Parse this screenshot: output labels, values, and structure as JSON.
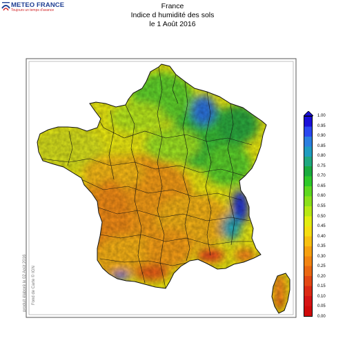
{
  "logo": {
    "name": "METEO FRANCE",
    "tagline": "Toujours un temps d'avance"
  },
  "title": {
    "line1": "France",
    "line2": "Indice d humidité des sols",
    "line3": "le 1 Août 2016"
  },
  "credits": {
    "produced": "produit élaboré le 02 Août 2016",
    "basemap": "Fond de Carte © IGN"
  },
  "legend": {
    "ticks": [
      "1.00",
      "0.95",
      "0.90",
      "0.85",
      "0.80",
      "0.75",
      "0.70",
      "0.65",
      "0.60",
      "0.55",
      "0.50",
      "0.45",
      "0.40",
      "0.35",
      "0.30",
      "0.25",
      "0.20",
      "0.15",
      "0.10",
      "0.05",
      "0.00"
    ],
    "colors": [
      "#1a10d8",
      "#2a48f0",
      "#2b7fe0",
      "#1f9cc0",
      "#20a880",
      "#1aab3f",
      "#2ec82a",
      "#5ed820",
      "#8be01a",
      "#b8e814",
      "#e2ec10",
      "#f5dd10",
      "#f8c010",
      "#f6a010",
      "#f28412",
      "#ea6812",
      "#e34814",
      "#dc2a14",
      "#d61414",
      "#d00a0a"
    ]
  },
  "colors": {
    "frame": "#555555",
    "borders": "#111111",
    "logo_blue": "#1f3f93",
    "logo_red": "#d1262a"
  }
}
